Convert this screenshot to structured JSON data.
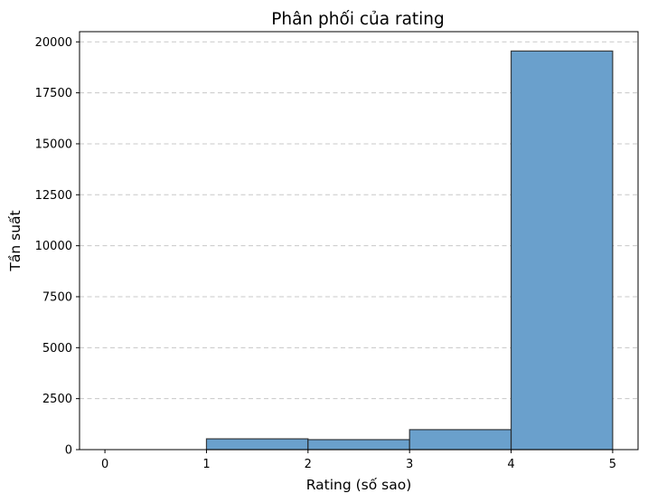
{
  "chart_data": {
    "type": "bar",
    "title": "Phân phối của rating",
    "xlabel": "Rating (số sao)",
    "ylabel": "Tần suất",
    "bins": [
      {
        "start": 0,
        "end": 1,
        "value": 0
      },
      {
        "start": 1,
        "end": 2,
        "value": 530
      },
      {
        "start": 2,
        "end": 3,
        "value": 490
      },
      {
        "start": 3,
        "end": 4,
        "value": 980
      },
      {
        "start": 4,
        "end": 5,
        "value": 19550
      }
    ],
    "xlim": [
      -0.25,
      5.25
    ],
    "ylim": [
      0,
      20500
    ],
    "xticks": [
      0,
      1,
      2,
      3,
      4,
      5
    ],
    "yticks": [
      0,
      2500,
      5000,
      7500,
      10000,
      12500,
      15000,
      17500,
      20000
    ],
    "grid": "y",
    "bar_color": "#6aa0cc",
    "edge_color": "#222222",
    "bar_alpha": 0.7
  }
}
